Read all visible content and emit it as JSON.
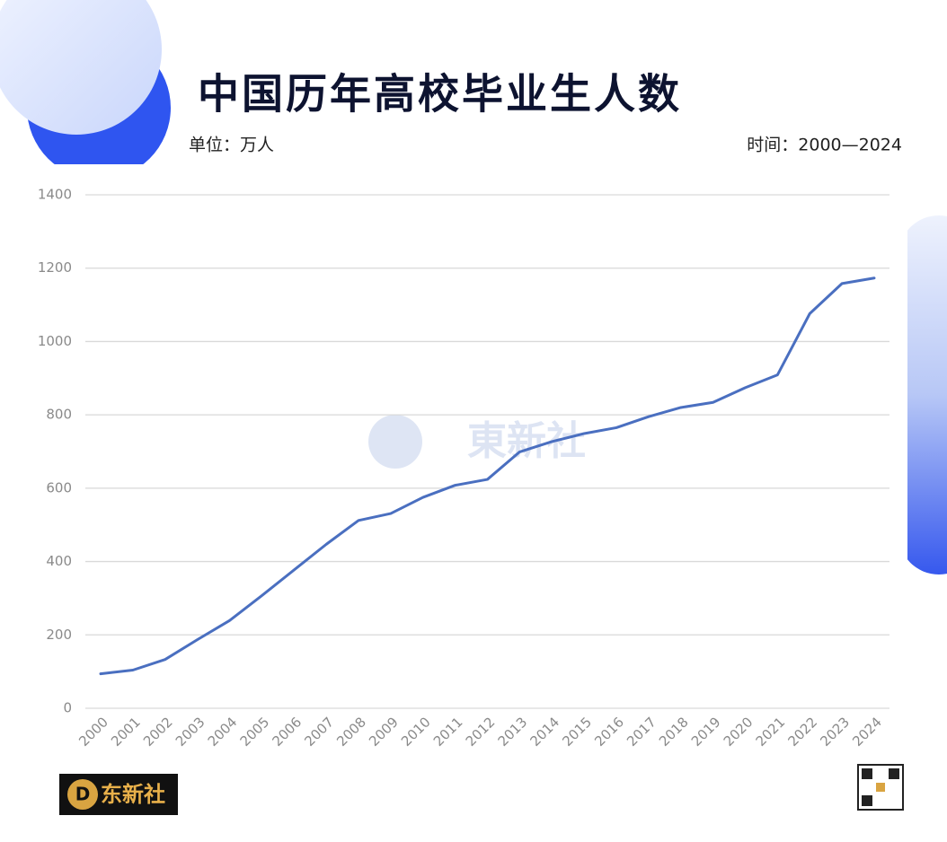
{
  "header": {
    "title": "中国历年高校毕业生人数",
    "unit": "单位：万人",
    "period": "时间：2000—2024"
  },
  "footer": {
    "brand_mark": "D",
    "brand": "东新社",
    "watermark": "東新社"
  },
  "chart_data": {
    "type": "line",
    "categories": [
      "2000",
      "2001",
      "2002",
      "2003",
      "2004",
      "2005",
      "2006",
      "2007",
      "2008",
      "2009",
      "2010",
      "2011",
      "2012",
      "2013",
      "2014",
      "2015",
      "2016",
      "2017",
      "2018",
      "2019",
      "2020",
      "2021",
      "2022",
      "2023",
      "2024"
    ],
    "series": [
      {
        "color": "#4a6fc0",
        "values": [
          94,
          104,
          133,
          187,
          239,
          307,
          377,
          447,
          512,
          531,
          575,
          608,
          624,
          699,
          727,
          749,
          765,
          795,
          820,
          834,
          874,
          909,
          1076,
          1158,
          1173
        ]
      }
    ],
    "ylim": [
      0,
      1400
    ],
    "yticks": [
      0,
      200,
      400,
      600,
      800,
      1000,
      1200,
      1400
    ],
    "grid": true
  }
}
